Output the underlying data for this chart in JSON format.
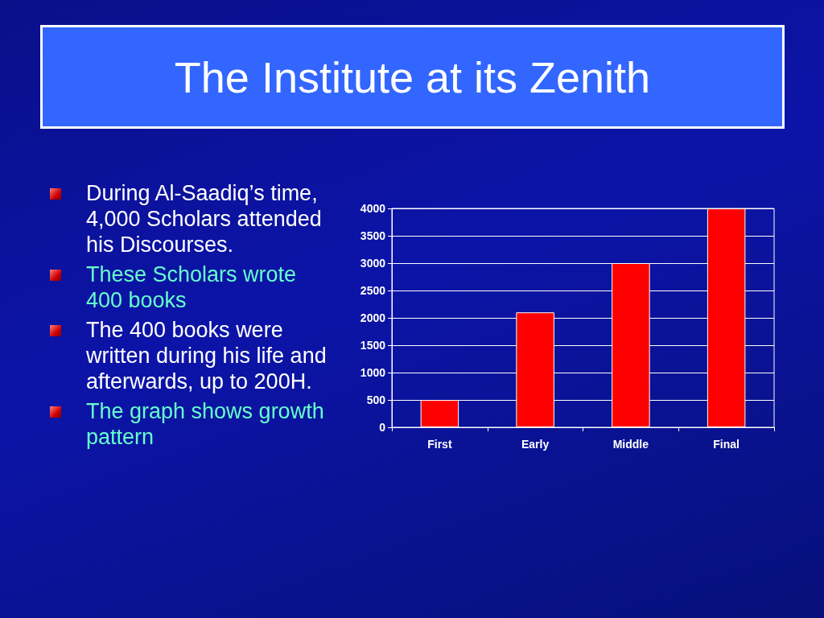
{
  "chart_data": {
    "type": "bar",
    "title": "The Institute at its Zenith",
    "annotations": [
      "During Al-Saadiq’s time, 4,000 Scholars attended his Discourses.",
      "These Scholars wrote 400 books",
      "The 400 books were written during his life and afterwards, up to 200H.",
      "The graph shows growth pattern"
    ],
    "categories": [
      "First",
      "Early",
      "Middle",
      "Final"
    ],
    "values": [
      500,
      2100,
      3000,
      4000
    ],
    "color": "#ff0000",
    "ylim": [
      0,
      4000
    ],
    "yticks": [
      0,
      500,
      1000,
      1500,
      2000,
      2500,
      3000,
      3500,
      4000
    ],
    "grid": "y"
  }
}
